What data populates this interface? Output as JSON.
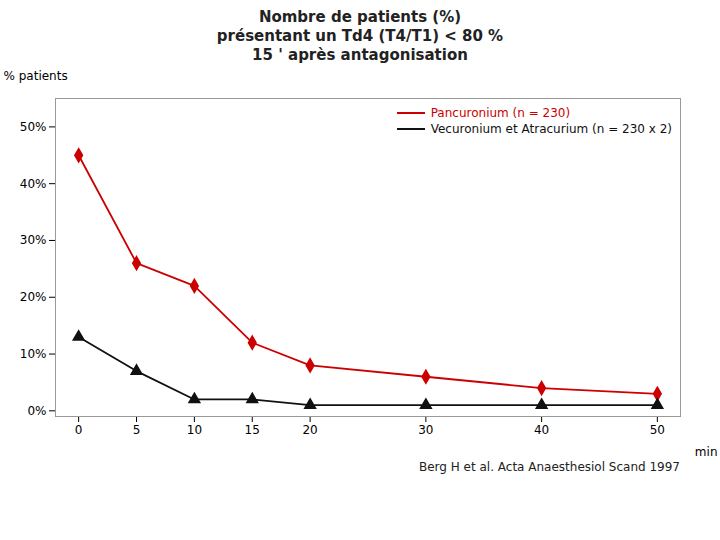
{
  "chart_data": {
    "type": "line",
    "title": "Nombre de patients (%)\nprésentant un Td4 (T4/T1) < 80 %\n15 ' après antagonisation",
    "x_label": "min",
    "y_label": "% patients",
    "x": [
      0,
      5,
      10,
      15,
      20,
      30,
      40,
      50
    ],
    "series": [
      {
        "name": "Pancuronium (n = 230)",
        "color": "#cc0000",
        "marker": "diamond",
        "values": [
          45,
          26,
          22,
          12,
          8,
          6,
          4,
          3
        ]
      },
      {
        "name": "Vecuronium et Atracurium (n = 230 x 2)",
        "color": "#111111",
        "marker": "triangle",
        "values": [
          13,
          7,
          2,
          2,
          1,
          1,
          1,
          1
        ]
      }
    ],
    "xlim": [
      -2,
      52
    ],
    "xticks": [
      0,
      5,
      10,
      15,
      20,
      30,
      40,
      50
    ],
    "ylim": [
      -1,
      55
    ],
    "yticks": [
      {
        "value": 0,
        "label": "0%"
      },
      {
        "value": 10,
        "label": "10%"
      },
      {
        "value": 20,
        "label": "20%"
      },
      {
        "value": 30,
        "label": "30%"
      },
      {
        "value": 40,
        "label": "40%"
      },
      {
        "value": 50,
        "label": "50%"
      }
    ],
    "grid": false,
    "legend": "upper right",
    "annotations": [
      "Berg H et al. Acta Anaesthesiol Scand 1997"
    ]
  }
}
